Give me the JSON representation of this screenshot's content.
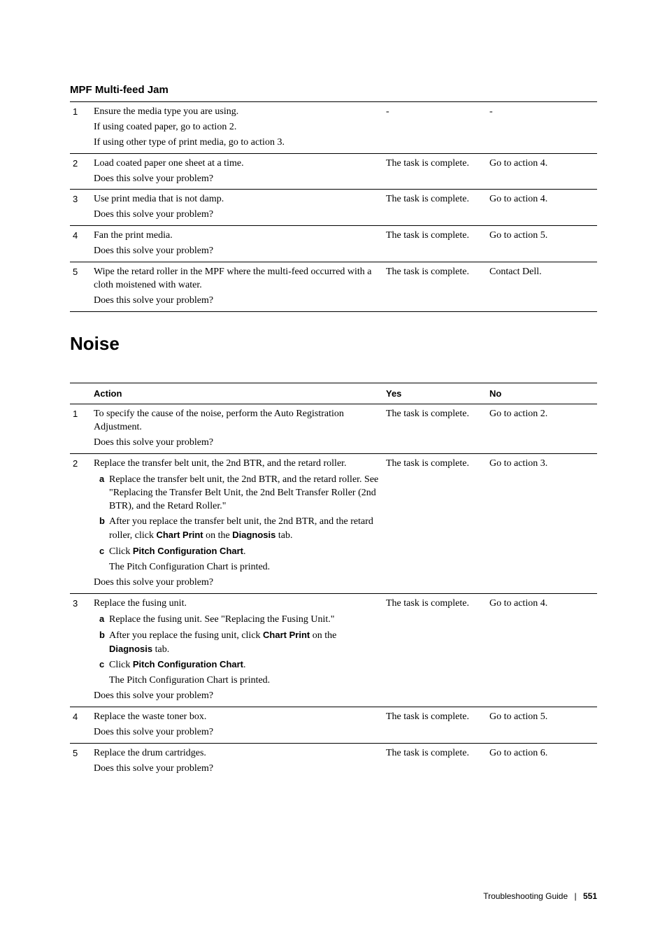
{
  "section1": {
    "title": "MPF Multi-feed Jam",
    "rows": [
      {
        "num": "1",
        "lines": [
          "Ensure the media type you are using.",
          "If using coated paper, go to action 2.",
          "If using other type of print media, go to action 3."
        ],
        "yes": "-",
        "no": "-"
      },
      {
        "num": "2",
        "lines": [
          "Load coated paper one sheet at a time.",
          "Does this solve your problem?"
        ],
        "yes": "The task is complete.",
        "no": "Go to action 4."
      },
      {
        "num": "3",
        "lines": [
          "Use print media that is not damp.",
          "Does this solve your problem?"
        ],
        "yes": "The task is complete.",
        "no": "Go to action 4."
      },
      {
        "num": "4",
        "lines": [
          "Fan the print media.",
          "Does this solve your problem?"
        ],
        "yes": "The task is complete.",
        "no": "Go to action 5."
      },
      {
        "num": "5",
        "lines": [
          "Wipe the retard roller in the MPF where the multi-feed occurred with a cloth moistened with water.",
          "Does this solve your problem?"
        ],
        "yes": "The task is complete.",
        "no": "Contact Dell."
      }
    ]
  },
  "section2": {
    "heading": "Noise",
    "headers": {
      "action": "Action",
      "yes": "Yes",
      "no": "No"
    },
    "rows": {
      "r1": {
        "num": "1",
        "line1": "To specify the cause of the noise, perform the Auto Registration Adjustment.",
        "line2": "Does this solve your problem?",
        "yes": "The task is complete.",
        "no": "Go to action 2."
      },
      "r2": {
        "num": "2",
        "intro": "Replace the transfer belt unit, the 2nd BTR, and the retard roller.",
        "a": "Replace the transfer belt unit, the 2nd BTR, and the retard roller. See \"Replacing the Transfer Belt Unit, the 2nd Belt Transfer Roller (2nd BTR), and the Retard Roller.\"",
        "b_pre": "After you replace the transfer belt unit, the 2nd BTR, and the retard roller, click ",
        "b_bold1": "Chart Print",
        "b_mid": " on the ",
        "b_bold2": "Diagnosis",
        "b_post": " tab.",
        "c_pre": "Click ",
        "c_bold": "Pitch Configuration Chart",
        "c_post": ".",
        "tail1": "The Pitch Configuration Chart is printed.",
        "tail2": "Does this solve your problem?",
        "yes": "The task is complete.",
        "no": "Go to action 3."
      },
      "r3": {
        "num": "3",
        "intro": "Replace the fusing unit.",
        "a": "Replace the fusing unit. See \"Replacing the Fusing Unit.\"",
        "b_pre": "After you replace the fusing unit, click ",
        "b_bold1": "Chart Print",
        "b_mid": " on the ",
        "b_bold2": "Diagnosis",
        "b_post": " tab.",
        "c_pre": "Click ",
        "c_bold": "Pitch Configuration Chart",
        "c_post": ".",
        "tail1": "The Pitch Configuration Chart is printed.",
        "tail2": "Does this solve your problem?",
        "yes": "The task is complete.",
        "no": "Go to action 4."
      },
      "r4": {
        "num": "4",
        "line1": "Replace the waste toner box.",
        "line2": "Does this solve your problem?",
        "yes": "The task is complete.",
        "no": "Go to action 5."
      },
      "r5": {
        "num": "5",
        "line1": "Replace the drum cartridges.",
        "line2": "Does this solve your problem?",
        "yes": "The task is complete.",
        "no": "Go to action 6."
      }
    }
  },
  "footer": {
    "title": "Troubleshooting Guide",
    "page": "551"
  }
}
